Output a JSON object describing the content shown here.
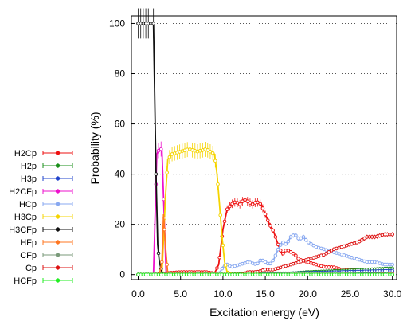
{
  "chart_data": {
    "type": "line",
    "title": "",
    "xlabel": "Excitation energy (eV)",
    "ylabel": "Probability (%)",
    "xlim": [
      -0.8,
      30.5
    ],
    "ylim": [
      -2,
      103
    ],
    "grid": "horizontal dotted",
    "legend_placement": "left",
    "x_ticks": [
      {
        "value": 0,
        "label": "0.0"
      },
      {
        "value": 5,
        "label": "5.0"
      },
      {
        "value": 10,
        "label": "10.0"
      },
      {
        "value": 15,
        "label": "15.0"
      },
      {
        "value": 20,
        "label": "20.0"
      },
      {
        "value": 25,
        "label": "25.0"
      },
      {
        "value": 30,
        "label": "30.0"
      }
    ],
    "y_ticks": [
      {
        "value": 0,
        "label": "0"
      },
      {
        "value": 20,
        "label": "20"
      },
      {
        "value": 40,
        "label": "40"
      },
      {
        "value": 60,
        "label": "60"
      },
      {
        "value": 80,
        "label": "80"
      },
      {
        "value": 100,
        "label": "100"
      }
    ],
    "series": [
      {
        "name": "H2Cp",
        "color": "#ee1111",
        "points": [
          [
            0,
            0
          ],
          [
            2,
            0
          ],
          [
            3,
            0.5
          ],
          [
            5,
            1
          ],
          [
            8,
            1
          ],
          [
            9,
            0.5
          ],
          [
            9.5,
            4
          ],
          [
            10,
            18
          ],
          [
            10.5,
            26
          ],
          [
            11,
            28
          ],
          [
            11.5,
            29
          ],
          [
            12,
            28
          ],
          [
            12.5,
            30
          ],
          [
            13,
            29
          ],
          [
            13.5,
            28
          ],
          [
            14,
            29
          ],
          [
            14.5,
            28
          ],
          [
            15,
            24
          ],
          [
            15.5,
            20
          ],
          [
            16,
            17
          ],
          [
            16.5,
            12
          ],
          [
            17,
            8
          ],
          [
            17.5,
            10
          ],
          [
            18,
            9
          ],
          [
            18.5,
            8
          ],
          [
            19,
            6
          ],
          [
            20,
            5
          ],
          [
            21,
            4
          ],
          [
            22,
            3
          ],
          [
            23,
            3
          ],
          [
            24,
            2
          ],
          [
            25,
            2
          ],
          [
            26,
            2
          ],
          [
            27,
            1
          ],
          [
            28,
            1
          ],
          [
            30,
            1
          ]
        ]
      },
      {
        "name": "H2p",
        "color": "#1a8f1a",
        "points": [
          [
            0,
            0
          ],
          [
            10,
            0
          ],
          [
            14,
            0.5
          ],
          [
            18,
            0.5
          ],
          [
            20,
            1
          ],
          [
            24,
            1.5
          ],
          [
            27,
            2
          ],
          [
            30,
            2.5
          ]
        ]
      },
      {
        "name": "H3p",
        "color": "#2244cc",
        "points": [
          [
            0,
            0
          ],
          [
            12,
            0
          ],
          [
            18,
            0.5
          ],
          [
            24,
            1
          ],
          [
            30,
            1.5
          ]
        ]
      },
      {
        "name": "H2CFp",
        "color": "#ee11cc",
        "points": [
          [
            1.8,
            0
          ],
          [
            2.2,
            48
          ],
          [
            2.5,
            50
          ],
          [
            2.8,
            50
          ],
          [
            3.1,
            20
          ],
          [
            3.3,
            0
          ],
          [
            30,
            0
          ]
        ]
      },
      {
        "name": "HCp",
        "color": "#88a8f0",
        "points": [
          [
            0,
            0
          ],
          [
            9.5,
            0
          ],
          [
            10,
            3
          ],
          [
            10.5,
            4
          ],
          [
            11,
            3
          ],
          [
            12,
            4
          ],
          [
            13,
            5
          ],
          [
            14,
            4
          ],
          [
            14.5,
            6
          ],
          [
            15,
            5
          ],
          [
            15.5,
            4
          ],
          [
            16,
            6
          ],
          [
            16.5,
            10
          ],
          [
            17,
            13
          ],
          [
            17.5,
            12
          ],
          [
            18,
            15
          ],
          [
            18.5,
            16
          ],
          [
            19,
            14
          ],
          [
            19.5,
            15
          ],
          [
            20,
            13
          ],
          [
            20.5,
            12
          ],
          [
            21,
            11
          ],
          [
            22,
            10
          ],
          [
            23,
            9
          ],
          [
            24,
            8
          ],
          [
            25,
            7
          ],
          [
            26,
            6
          ],
          [
            27,
            5
          ],
          [
            28,
            5
          ],
          [
            29,
            4
          ],
          [
            30,
            4
          ]
        ]
      },
      {
        "name": "H3Cp",
        "color": "#f5d400",
        "points": [
          [
            2.8,
            0
          ],
          [
            3.2,
            30
          ],
          [
            3.5,
            46
          ],
          [
            4,
            48
          ],
          [
            5,
            49
          ],
          [
            6,
            50
          ],
          [
            7,
            49
          ],
          [
            8,
            50
          ],
          [
            8.5,
            49
          ],
          [
            9,
            48
          ],
          [
            9.3,
            40
          ],
          [
            9.6,
            28
          ],
          [
            9.9,
            15
          ],
          [
            10.2,
            5
          ],
          [
            10.5,
            1
          ],
          [
            11,
            0
          ],
          [
            30,
            0
          ]
        ]
      },
      {
        "name": "H3CFp",
        "color": "#111111",
        "points": [
          [
            0,
            100
          ],
          [
            0.5,
            100
          ],
          [
            1,
            100
          ],
          [
            1.5,
            100
          ],
          [
            1.8,
            100
          ],
          [
            2.1,
            40
          ],
          [
            2.3,
            12
          ],
          [
            2.5,
            5
          ],
          [
            2.8,
            1
          ],
          [
            3,
            0
          ],
          [
            30,
            0
          ]
        ]
      },
      {
        "name": "HFp",
        "color": "#ff7722",
        "points": [
          [
            2.5,
            0
          ],
          [
            2.8,
            5
          ],
          [
            3,
            24
          ],
          [
            3.2,
            12
          ],
          [
            3.5,
            0
          ],
          [
            30,
            0
          ]
        ]
      },
      {
        "name": "CFp",
        "color": "#7a9a7a",
        "points": [
          [
            0,
            0
          ],
          [
            30,
            0
          ]
        ]
      },
      {
        "name": "Cp",
        "color": "#dd1111",
        "points": [
          [
            0,
            0
          ],
          [
            12,
            0
          ],
          [
            13,
            1
          ],
          [
            14,
            1
          ],
          [
            15,
            2
          ],
          [
            16,
            2
          ],
          [
            17,
            3
          ],
          [
            18,
            4
          ],
          [
            19,
            5
          ],
          [
            20,
            6
          ],
          [
            21,
            7
          ],
          [
            22,
            8
          ],
          [
            23,
            10
          ],
          [
            24,
            11
          ],
          [
            25,
            12
          ],
          [
            26,
            13
          ],
          [
            27,
            15
          ],
          [
            28,
            15
          ],
          [
            29,
            16
          ],
          [
            30,
            16
          ]
        ]
      },
      {
        "name": "HCFp",
        "color": "#22ee22",
        "points": [
          [
            0,
            0
          ],
          [
            30,
            0
          ]
        ]
      }
    ]
  }
}
